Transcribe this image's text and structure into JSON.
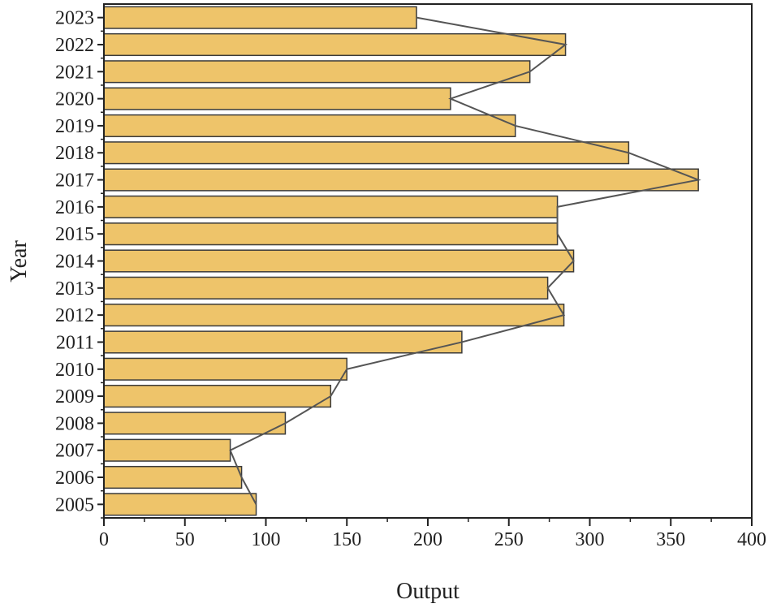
{
  "chart_data": {
    "type": "bar",
    "orientation": "horizontal",
    "title": "",
    "xlabel": "Output",
    "ylabel": "Year",
    "xlim": [
      0,
      400
    ],
    "xticks": [
      0,
      50,
      100,
      150,
      200,
      250,
      300,
      350,
      400
    ],
    "categories": [
      "2005",
      "2006",
      "2007",
      "2008",
      "2009",
      "2010",
      "2011",
      "2012",
      "2013",
      "2014",
      "2015",
      "2016",
      "2017",
      "2018",
      "2019",
      "2020",
      "2021",
      "2022",
      "2023"
    ],
    "values": [
      94,
      85,
      78,
      112,
      140,
      150,
      221,
      284,
      274,
      290,
      280,
      280,
      367,
      324,
      254,
      214,
      263,
      285,
      193
    ],
    "overlay_line": "connects bar end values",
    "grid": false,
    "colors": {
      "bar": "#EEC46A",
      "bar_edge": "#3a3a3a",
      "line": "#555555"
    }
  }
}
